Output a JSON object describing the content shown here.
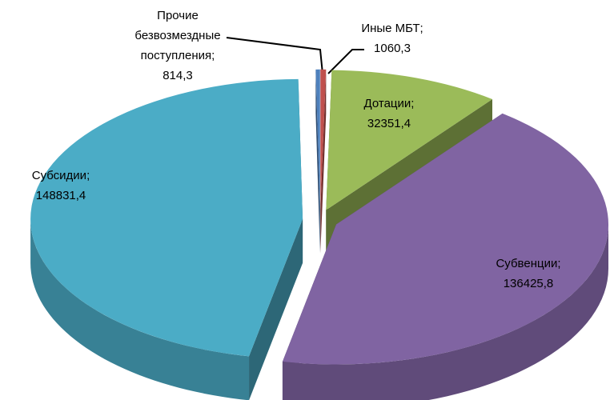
{
  "chart_data": {
    "type": "pie3d",
    "categories": [
      "Иные МБТ;",
      "Дотации;",
      "Субвенции;",
      "Субсидии;",
      "Прочие безвозмездные поступления;"
    ],
    "values": [
      1060.3,
      32351.4,
      136425.8,
      148831.4,
      814.3
    ],
    "value_labels": [
      "1060,3",
      "32351,4",
      "136425,8",
      "148831,4",
      "814,3"
    ],
    "colors": [
      "#c0504d",
      "#9bbb59",
      "#8064a2",
      "#4bacc6",
      "#4f81bd"
    ]
  }
}
